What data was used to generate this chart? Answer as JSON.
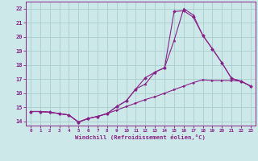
{
  "xlabel": "Windchill (Refroidissement éolien,°C)",
  "bg_color": "#cce8e8",
  "grid_color": "#aacccc",
  "line_color": "#882288",
  "x_ticks": [
    0,
    1,
    2,
    3,
    4,
    5,
    6,
    7,
    8,
    9,
    10,
    11,
    12,
    13,
    14,
    15,
    16,
    17,
    18,
    19,
    20,
    21,
    22,
    23
  ],
  "y_ticks": [
    14,
    15,
    16,
    17,
    18,
    19,
    20,
    21,
    22
  ],
  "ylim": [
    13.7,
    22.5
  ],
  "xlim": [
    -0.5,
    23.5
  ],
  "line1_x": [
    0,
    1,
    2,
    3,
    4,
    5,
    6,
    7,
    8,
    9,
    10,
    11,
    12,
    13,
    14,
    15,
    16,
    17,
    18,
    19,
    20,
    21,
    22,
    23
  ],
  "line1_y": [
    14.7,
    14.7,
    14.65,
    14.55,
    14.45,
    13.95,
    14.2,
    14.35,
    14.55,
    14.8,
    15.05,
    15.3,
    15.55,
    15.75,
    16.0,
    16.25,
    16.5,
    16.75,
    16.95,
    16.9,
    16.9,
    16.9,
    16.85,
    16.5
  ],
  "line2_x": [
    0,
    1,
    2,
    3,
    4,
    5,
    6,
    7,
    8,
    9,
    10,
    11,
    12,
    13,
    14,
    15,
    16,
    17,
    18,
    19,
    20,
    21,
    22,
    23
  ],
  "line2_y": [
    14.7,
    14.7,
    14.65,
    14.55,
    14.45,
    13.95,
    14.2,
    14.35,
    14.55,
    15.05,
    15.45,
    16.3,
    17.1,
    17.5,
    17.8,
    21.8,
    21.85,
    21.4,
    20.1,
    19.15,
    18.15,
    17.05,
    16.85,
    16.5
  ],
  "line3_x": [
    0,
    1,
    2,
    3,
    4,
    5,
    6,
    7,
    8,
    9,
    10,
    11,
    12,
    13,
    14,
    15,
    16,
    17,
    18,
    19,
    20,
    21,
    22,
    23
  ],
  "line3_y": [
    14.7,
    14.7,
    14.65,
    14.55,
    14.45,
    13.95,
    14.2,
    14.35,
    14.55,
    15.05,
    15.45,
    16.3,
    16.65,
    17.5,
    17.8,
    19.75,
    22.0,
    21.55,
    20.1,
    19.15,
    18.15,
    17.05,
    16.85,
    16.5
  ]
}
